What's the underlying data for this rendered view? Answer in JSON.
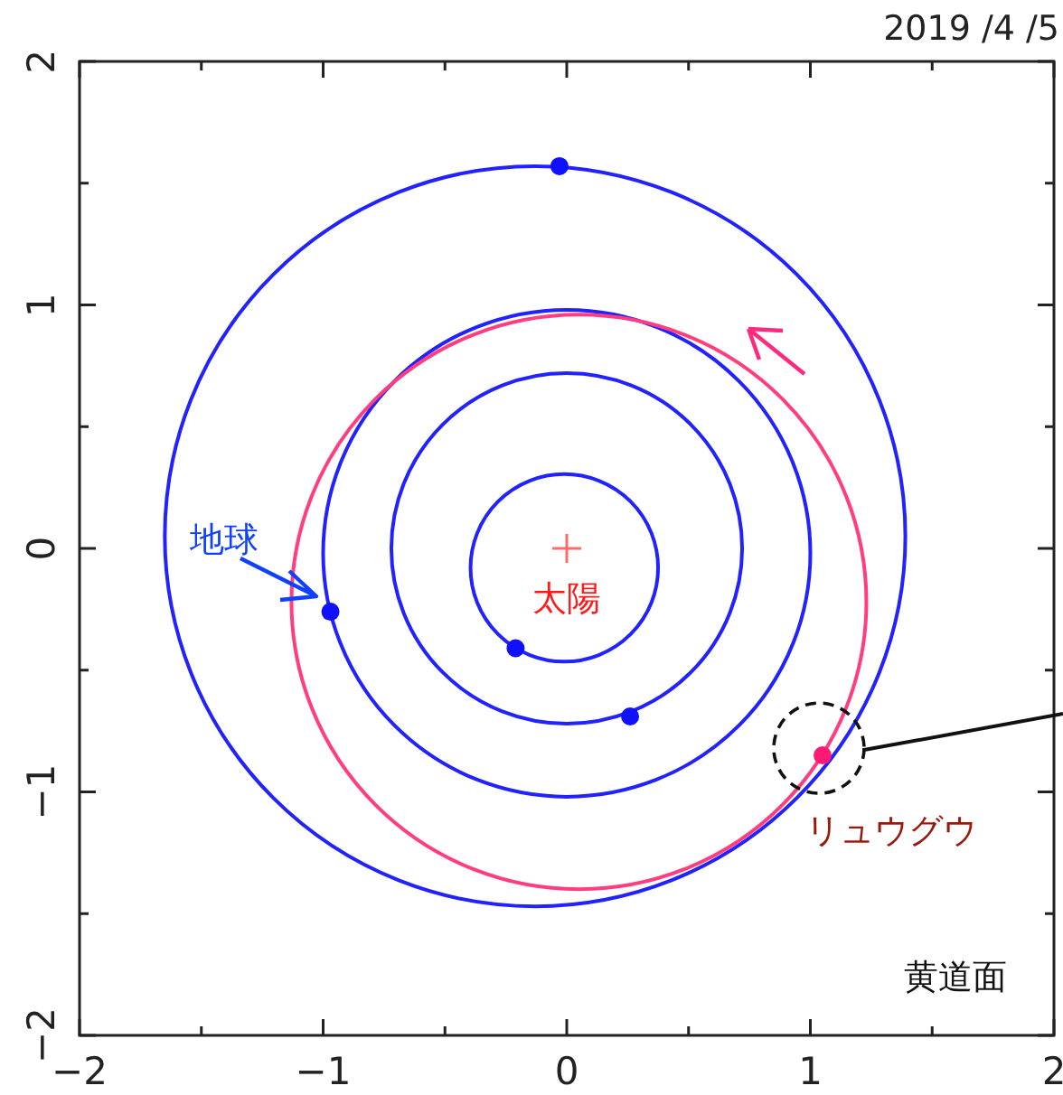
{
  "chart_data": {
    "type": "scatter",
    "title": "2019 /4 /5",
    "xlim": [
      -2,
      2
    ],
    "ylim": [
      -2,
      2
    ],
    "xticks": [
      {
        "value": -2,
        "label": "−2"
      },
      {
        "value": -1.5,
        "label": null
      },
      {
        "value": -1,
        "label": "−1"
      },
      {
        "value": -0.5,
        "label": null
      },
      0,
      {
        "value": 0.5,
        "label": null
      },
      1,
      {
        "value": 1.5,
        "label": null
      },
      2
    ],
    "yticks": [
      {
        "value": -2,
        "label": "−2"
      },
      {
        "value": -1.5,
        "label": null
      },
      {
        "value": -1,
        "label": "−1"
      },
      {
        "value": -0.5,
        "label": null
      },
      0,
      {
        "value": 0.5,
        "label": null
      },
      1,
      {
        "value": 1.5,
        "label": null
      },
      2
    ],
    "grid": false,
    "series": [
      {
        "marker": "circle",
        "color": "#1010ff",
        "x": [
          -0.21,
          0.26,
          -0.97,
          -0.03
        ],
        "values": [
          -0.41,
          -0.69,
          -0.26,
          1.57
        ]
      },
      {
        "marker": "circle",
        "color": "#ff1a75",
        "x": [
          1.05
        ],
        "values": [
          -0.85
        ]
      },
      {
        "marker": "cross",
        "color": "#ff6a6a",
        "x": [
          0
        ],
        "values": [
          0
        ]
      }
    ],
    "annotations": [
      "地球",
      {
        "text": "太陽",
        "x": 0,
        "y": 0
      },
      {
        "text": "リュウグウ",
        "x": 1.05,
        "y": -0.85
      },
      "黄道面"
    ]
  }
}
